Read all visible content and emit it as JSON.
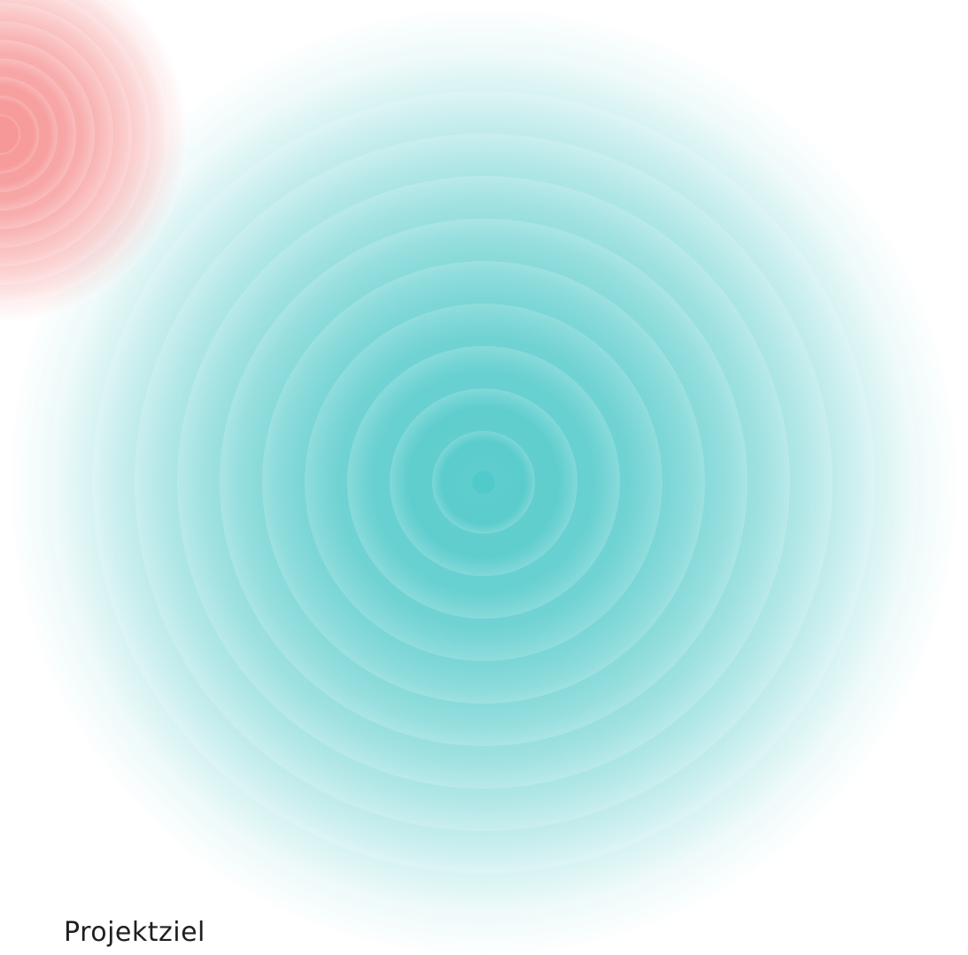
{
  "label": "Projektziel"
}
